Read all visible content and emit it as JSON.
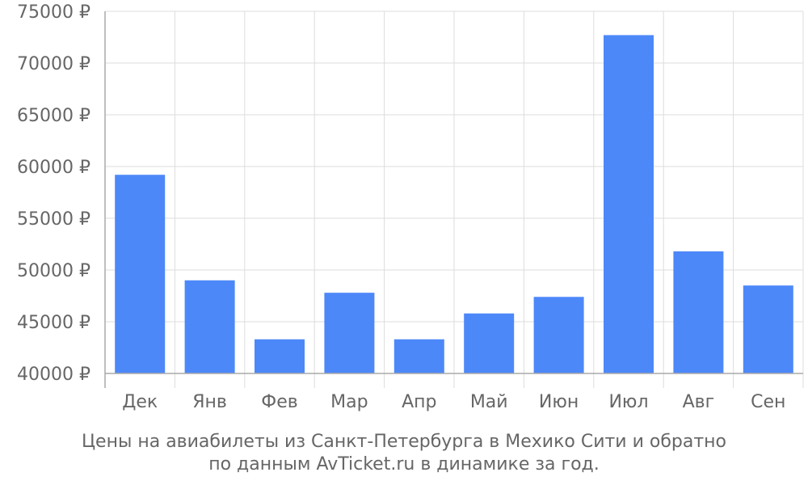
{
  "chart_data": {
    "type": "bar",
    "categories": [
      "Дек",
      "Янв",
      "Фев",
      "Мар",
      "Апр",
      "Май",
      "Июн",
      "Июл",
      "Авг",
      "Сен"
    ],
    "values": [
      59200,
      49000,
      43300,
      47800,
      43300,
      45800,
      47400,
      72700,
      51800,
      48500
    ],
    "ylim": [
      40000,
      75000
    ],
    "yticks": [
      40000,
      45000,
      50000,
      55000,
      60000,
      65000,
      70000,
      75000
    ],
    "ytick_labels": [
      "40000 ₽",
      "45000 ₽",
      "50000 ₽",
      "55000 ₽",
      "60000 ₽",
      "65000 ₽",
      "70000 ₽",
      "75000 ₽"
    ],
    "grid": true,
    "colors": {
      "bar": "#4d88f9",
      "grid": "#dddddd",
      "axis": "#aaaaaa",
      "text": "#666666"
    }
  },
  "caption": {
    "line1": "Цены на авиабилеты из Санкт-Петербурга в Мехико Сити и обратно",
    "line2": "по данным AvTicket.ru в динамике за год."
  }
}
